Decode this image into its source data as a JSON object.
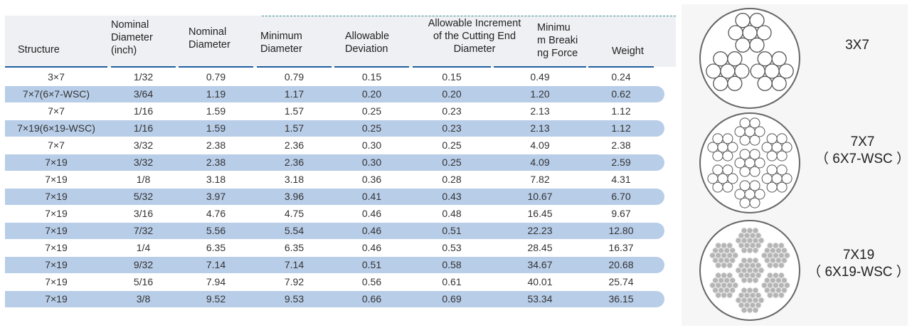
{
  "table": {
    "headers": [
      [
        "Structure"
      ],
      [
        "Nominal",
        "Diameter",
        "(inch)"
      ],
      [
        "Nominal",
        "Diameter"
      ],
      [
        "Minimum",
        "Diameter"
      ],
      [
        "Allowable",
        "Deviation"
      ],
      [
        "Allowable Increment",
        "of the Cutting End",
        "Diameter"
      ],
      [
        "Minimu",
        "m Breaki",
        "ng Force"
      ],
      [
        "Weight"
      ]
    ],
    "rows": [
      [
        "3×7",
        "1/32",
        "0.79",
        "0.79",
        "0.15",
        "0.15",
        "0.49",
        "0.24"
      ],
      [
        "7×7(6×7-WSC)",
        "3/64",
        "1.19",
        "1.17",
        "0.20",
        "0.20",
        "1.20",
        "0.62"
      ],
      [
        "7×7",
        "1/16",
        "1.59",
        "1.57",
        "0.25",
        "0.23",
        "2.13",
        "1.12"
      ],
      [
        "7×19(6×19-WSC)",
        "1/16",
        "1.59",
        "1.57",
        "0.25",
        "0.23",
        "2.13",
        "1.12"
      ],
      [
        "7×7",
        "3/32",
        "2.38",
        "2.36",
        "0.30",
        "0.25",
        "4.09",
        "2.38"
      ],
      [
        "7×19",
        "3/32",
        "2.38",
        "2.36",
        "0.30",
        "0.25",
        "4.09",
        "2.59"
      ],
      [
        "7×19",
        "1/8",
        "3.18",
        "3.18",
        "0.36",
        "0.28",
        "7.82",
        "4.31"
      ],
      [
        "7×19",
        "5/32",
        "3.97",
        "3.96",
        "0.41",
        "0.43",
        "10.67",
        "6.70"
      ],
      [
        "7×19",
        "3/16",
        "4.76",
        "4.75",
        "0.46",
        "0.48",
        "16.45",
        "9.67"
      ],
      [
        "7×19",
        "7/32",
        "5.56",
        "5.54",
        "0.46",
        "0.51",
        "22.23",
        "12.80"
      ],
      [
        "7×19",
        "1/4",
        "6.35",
        "6.35",
        "0.46",
        "0.53",
        "28.45",
        "16.37"
      ],
      [
        "7×19",
        "9/32",
        "7.14",
        "7.14",
        "0.51",
        "0.58",
        "34.67",
        "20.68"
      ],
      [
        "7×19",
        "5/16",
        "7.94",
        "7.92",
        "0.56",
        "0.61",
        "40.01",
        "25.74"
      ],
      [
        "7×19",
        "3/8",
        "9.52",
        "9.53",
        "0.66",
        "0.69",
        "53.34",
        "36.15"
      ]
    ]
  },
  "diagrams": [
    {
      "name": "3x7",
      "lines": [
        "3X7"
      ]
    },
    {
      "name": "7x7",
      "lines": [
        "7X7",
        "（ 6X7-WSC ）"
      ]
    },
    {
      "name": "7x19",
      "lines": [
        "7X19",
        "（ 6X19-WSC ）"
      ]
    }
  ],
  "colors": {
    "band": "#b8cde8",
    "header_rule": "#1f5f9e",
    "header_bg": "#eef0f3",
    "dash": "#3b8c8c"
  }
}
